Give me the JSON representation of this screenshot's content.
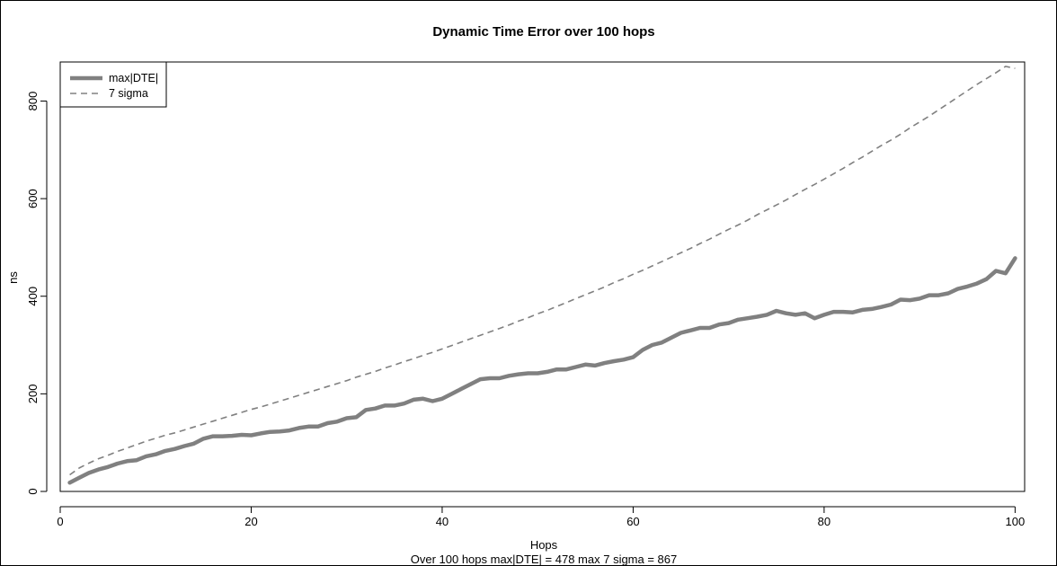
{
  "chart_data": {
    "type": "line",
    "title": "Dynamic Time Error over 100 hops",
    "xlabel": "Hops",
    "ylabel": "ns",
    "subtitle": "Over 100 hops   max|DTE| = 478   max 7 sigma = 867",
    "xlim": [
      0,
      101
    ],
    "ylim": [
      0,
      880
    ],
    "x_ticks": [
      0,
      20,
      40,
      60,
      80,
      100
    ],
    "y_ticks": [
      0,
      200,
      400,
      600,
      800
    ],
    "legend_position": "top-left",
    "grid": false,
    "series": [
      {
        "name": "max|DTE|",
        "color": "#808080",
        "style": "solid-thick",
        "x": [
          1,
          2,
          3,
          4,
          5,
          6,
          7,
          8,
          9,
          10,
          11,
          12,
          13,
          14,
          15,
          16,
          17,
          18,
          19,
          20,
          21,
          22,
          23,
          24,
          25,
          26,
          27,
          28,
          29,
          30,
          31,
          32,
          33,
          34,
          35,
          36,
          37,
          38,
          39,
          40,
          41,
          42,
          43,
          44,
          45,
          46,
          47,
          48,
          49,
          50,
          51,
          52,
          53,
          54,
          55,
          56,
          57,
          58,
          59,
          60,
          61,
          62,
          63,
          64,
          65,
          66,
          67,
          68,
          69,
          70,
          71,
          72,
          73,
          74,
          75,
          76,
          77,
          78,
          79,
          80,
          81,
          82,
          83,
          84,
          85,
          86,
          87,
          88,
          89,
          90,
          91,
          92,
          93,
          94,
          95,
          96,
          97,
          98,
          99,
          100
        ],
        "values": [
          18,
          28,
          38,
          45,
          50,
          57,
          62,
          64,
          72,
          76,
          83,
          87,
          93,
          98,
          108,
          113,
          113,
          114,
          116,
          115,
          119,
          122,
          123,
          125,
          130,
          133,
          133,
          140,
          143,
          150,
          152,
          167,
          170,
          176,
          176,
          180,
          188,
          190,
          185,
          190,
          200,
          210,
          220,
          230,
          232,
          232,
          237,
          240,
          242,
          242,
          245,
          250,
          250,
          255,
          260,
          258,
          263,
          267,
          270,
          275,
          290,
          300,
          305,
          315,
          325,
          330,
          335,
          335,
          342,
          345,
          352,
          355,
          358,
          362,
          370,
          365,
          362,
          365,
          355,
          362,
          368,
          368,
          367,
          372,
          374,
          378,
          383,
          393,
          392,
          395,
          402,
          402,
          406,
          415,
          420,
          426,
          435,
          452,
          447,
          478
        ]
      },
      {
        "name": "7 sigma",
        "color": "#808080",
        "style": "dashed",
        "x": [
          1,
          2,
          3,
          4,
          5,
          6,
          7,
          8,
          9,
          10,
          11,
          12,
          13,
          14,
          15,
          16,
          17,
          18,
          19,
          20,
          21,
          22,
          23,
          24,
          25,
          26,
          27,
          28,
          29,
          30,
          31,
          32,
          33,
          34,
          35,
          36,
          37,
          38,
          39,
          40,
          41,
          42,
          43,
          44,
          45,
          46,
          47,
          48,
          49,
          50,
          51,
          52,
          53,
          54,
          55,
          56,
          57,
          58,
          59,
          60,
          61,
          62,
          63,
          64,
          65,
          66,
          67,
          68,
          69,
          70,
          71,
          72,
          73,
          74,
          75,
          76,
          77,
          78,
          79,
          80,
          81,
          82,
          83,
          84,
          85,
          86,
          87,
          88,
          89,
          90,
          91,
          92,
          93,
          94,
          95,
          96,
          97,
          98,
          99,
          100
        ],
        "values": [
          34,
          48,
          58,
          67,
          74,
          82,
          89,
          96,
          103,
          109,
          115,
          120,
          126,
          132,
          138,
          144,
          150,
          156,
          162,
          168,
          173,
          179,
          185,
          191,
          197,
          203,
          209,
          215,
          221,
          227,
          234,
          240,
          246,
          253,
          259,
          266,
          272,
          279,
          285,
          292,
          299,
          306,
          313,
          320,
          327,
          334,
          341,
          349,
          356,
          364,
          371,
          379,
          387,
          395,
          403,
          411,
          419,
          428,
          436,
          445,
          453,
          462,
          471,
          480,
          489,
          498,
          508,
          517,
          527,
          537,
          546,
          556,
          567,
          577,
          587,
          597,
          608,
          619,
          629,
          640,
          651,
          662,
          674,
          685,
          697,
          709,
          720,
          732,
          745,
          757,
          769,
          782,
          795,
          808,
          821,
          834,
          846,
          858,
          871,
          867
        ]
      }
    ]
  }
}
